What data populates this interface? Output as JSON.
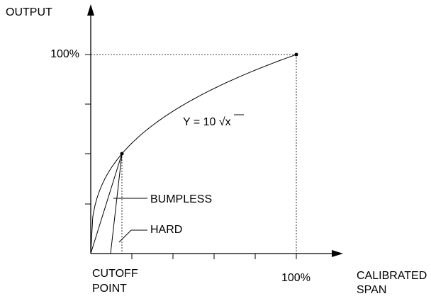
{
  "axes": {
    "y_label": "OUTPUT",
    "y_max_label": "100%",
    "x_max_label": "100%",
    "x_label": [
      "CALIBRATED",
      "SPAN"
    ]
  },
  "cutoff_label": [
    "CUTOFF",
    "POINT"
  ],
  "equation": "Y = 10 √x",
  "annotations": {
    "bumpless": "BUMPLESS",
    "hard": "HARD"
  }
}
